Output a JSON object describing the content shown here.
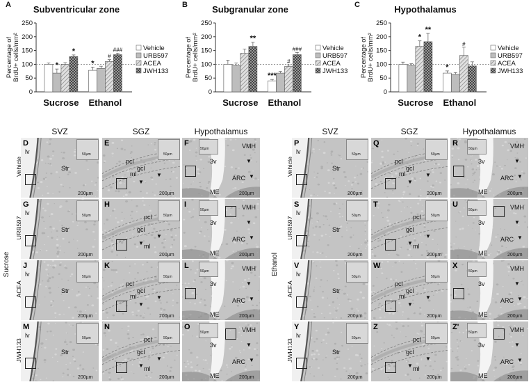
{
  "charts": [
    {
      "panel": "A",
      "title": "Subventricular zone",
      "ylabel_line1": "Percentage of",
      "ylabel_line2": "BrdU+ cells/mm²",
      "yticks": [
        "0",
        "50",
        "100",
        "150",
        "200",
        "250"
      ],
      "ylim": [
        0,
        250
      ],
      "categories": [
        "Sucrose",
        "Ethanol"
      ],
      "legend": [
        "Vehicle",
        "URB597",
        "ACEA",
        "JWH133"
      ],
      "chart_data": {
        "type": "bar",
        "categories": [
          "Sucrose",
          "Ethanol"
        ],
        "series": [
          {
            "name": "Vehicle",
            "values": [
              100,
              78
            ]
          },
          {
            "name": "URB597",
            "values": [
              68,
              85
            ]
          },
          {
            "name": "ACEA",
            "values": [
              100,
              110
            ]
          },
          {
            "name": "JWH133",
            "values": [
              128,
              135
            ]
          }
        ],
        "errors": [
          [
            5,
            12
          ],
          [
            15,
            8
          ],
          [
            6,
            7
          ],
          [
            6,
            5
          ]
        ],
        "annotations": [
          [
            "",
            "*"
          ],
          [
            "*",
            ""
          ],
          [
            "",
            "#"
          ],
          [
            "*",
            "###"
          ]
        ],
        "ylim": [
          0,
          250
        ],
        "reference_line": 100
      }
    },
    {
      "panel": "B",
      "title": "Subgranular zone",
      "ylabel_line1": "Percentage of",
      "ylabel_line2": "BrdU+ cells/mm²",
      "yticks": [
        "0",
        "50",
        "100",
        "150",
        "200",
        "250"
      ],
      "ylim": [
        0,
        250
      ],
      "categories": [
        "Sucrose",
        "Ethanol"
      ],
      "legend": [
        "Vehicle",
        "URB597",
        "ACEA",
        "JWH133"
      ],
      "chart_data": {
        "type": "bar",
        "categories": [
          "Sucrose",
          "Ethanol"
        ],
        "series": [
          {
            "name": "Vehicle",
            "values": [
              100,
              40
            ]
          },
          {
            "name": "URB597",
            "values": [
              95,
              68
            ]
          },
          {
            "name": "ACEA",
            "values": [
              140,
              92
            ]
          },
          {
            "name": "JWH133",
            "values": [
              165,
              135
            ]
          }
        ],
        "errors": [
          [
            15,
            5
          ],
          [
            10,
            6
          ],
          [
            15,
            6
          ],
          [
            15,
            8
          ]
        ],
        "annotations": [
          [
            "",
            "***"
          ],
          [
            "",
            ""
          ],
          [
            "",
            "#"
          ],
          [
            "**",
            "###"
          ]
        ],
        "ylim": [
          0,
          250
        ],
        "reference_line": 100
      }
    },
    {
      "panel": "C",
      "title": "Hypothalamus",
      "ylabel_line1": "Percentage of",
      "ylabel_line2": "BrdU+ cells/mm²",
      "yticks": [
        "0",
        "50",
        "100",
        "150",
        "200",
        "250"
      ],
      "ylim": [
        0,
        250
      ],
      "categories": [
        "Sucrose",
        "Ethanol"
      ],
      "legend": [
        "Vehicle",
        "URB597",
        "ACEA",
        "JWH133"
      ],
      "chart_data": {
        "type": "bar",
        "categories": [
          "Sucrose",
          "Ethanol"
        ],
        "series": [
          {
            "name": "Vehicle",
            "values": [
              100,
              68
            ]
          },
          {
            "name": "URB597",
            "values": [
              96,
              64
            ]
          },
          {
            "name": "ACEA",
            "values": [
              165,
              132
            ]
          },
          {
            "name": "JWH133",
            "values": [
              182,
              94
            ]
          }
        ],
        "errors": [
          [
            8,
            8
          ],
          [
            6,
            6
          ],
          [
            20,
            30
          ],
          [
            30,
            15
          ]
        ],
        "annotations": [
          [
            "",
            "*"
          ],
          [
            "",
            ""
          ],
          [
            "*",
            "#"
          ],
          [
            "**",
            ""
          ]
        ],
        "ylim": [
          0,
          250
        ],
        "reference_line": 100
      }
    }
  ],
  "micro": {
    "col_heads_left": [
      "SVZ",
      "SGZ",
      "Hypothalamus"
    ],
    "col_heads_right": [
      "SVZ",
      "SGZ",
      "Hypothalamus"
    ],
    "group_left": "Sucrose",
    "group_right": "Ethanol",
    "row_labels": [
      "Vehicle",
      "URB597",
      "ACEA",
      "JWH133"
    ],
    "letters_left": [
      [
        "D",
        "E",
        "F"
      ],
      [
        "G",
        "H",
        "I"
      ],
      [
        "J",
        "K",
        "L"
      ],
      [
        "M",
        "N",
        "O"
      ]
    ],
    "letters_right": [
      [
        "P",
        "Q",
        "R"
      ],
      [
        "S",
        "T",
        "U"
      ],
      [
        "V",
        "W",
        "X"
      ],
      [
        "Y",
        "Z",
        "Z'"
      ]
    ],
    "scale_200": "200µm",
    "scale_50": "50µm",
    "terms": {
      "lv": "lv",
      "str": "Str",
      "ml": "ml",
      "gcl": "gcl",
      "pcl": "pcl",
      "v3": "3v",
      "vmh": "VMH",
      "arc": "ARC",
      "me": "ME"
    }
  }
}
